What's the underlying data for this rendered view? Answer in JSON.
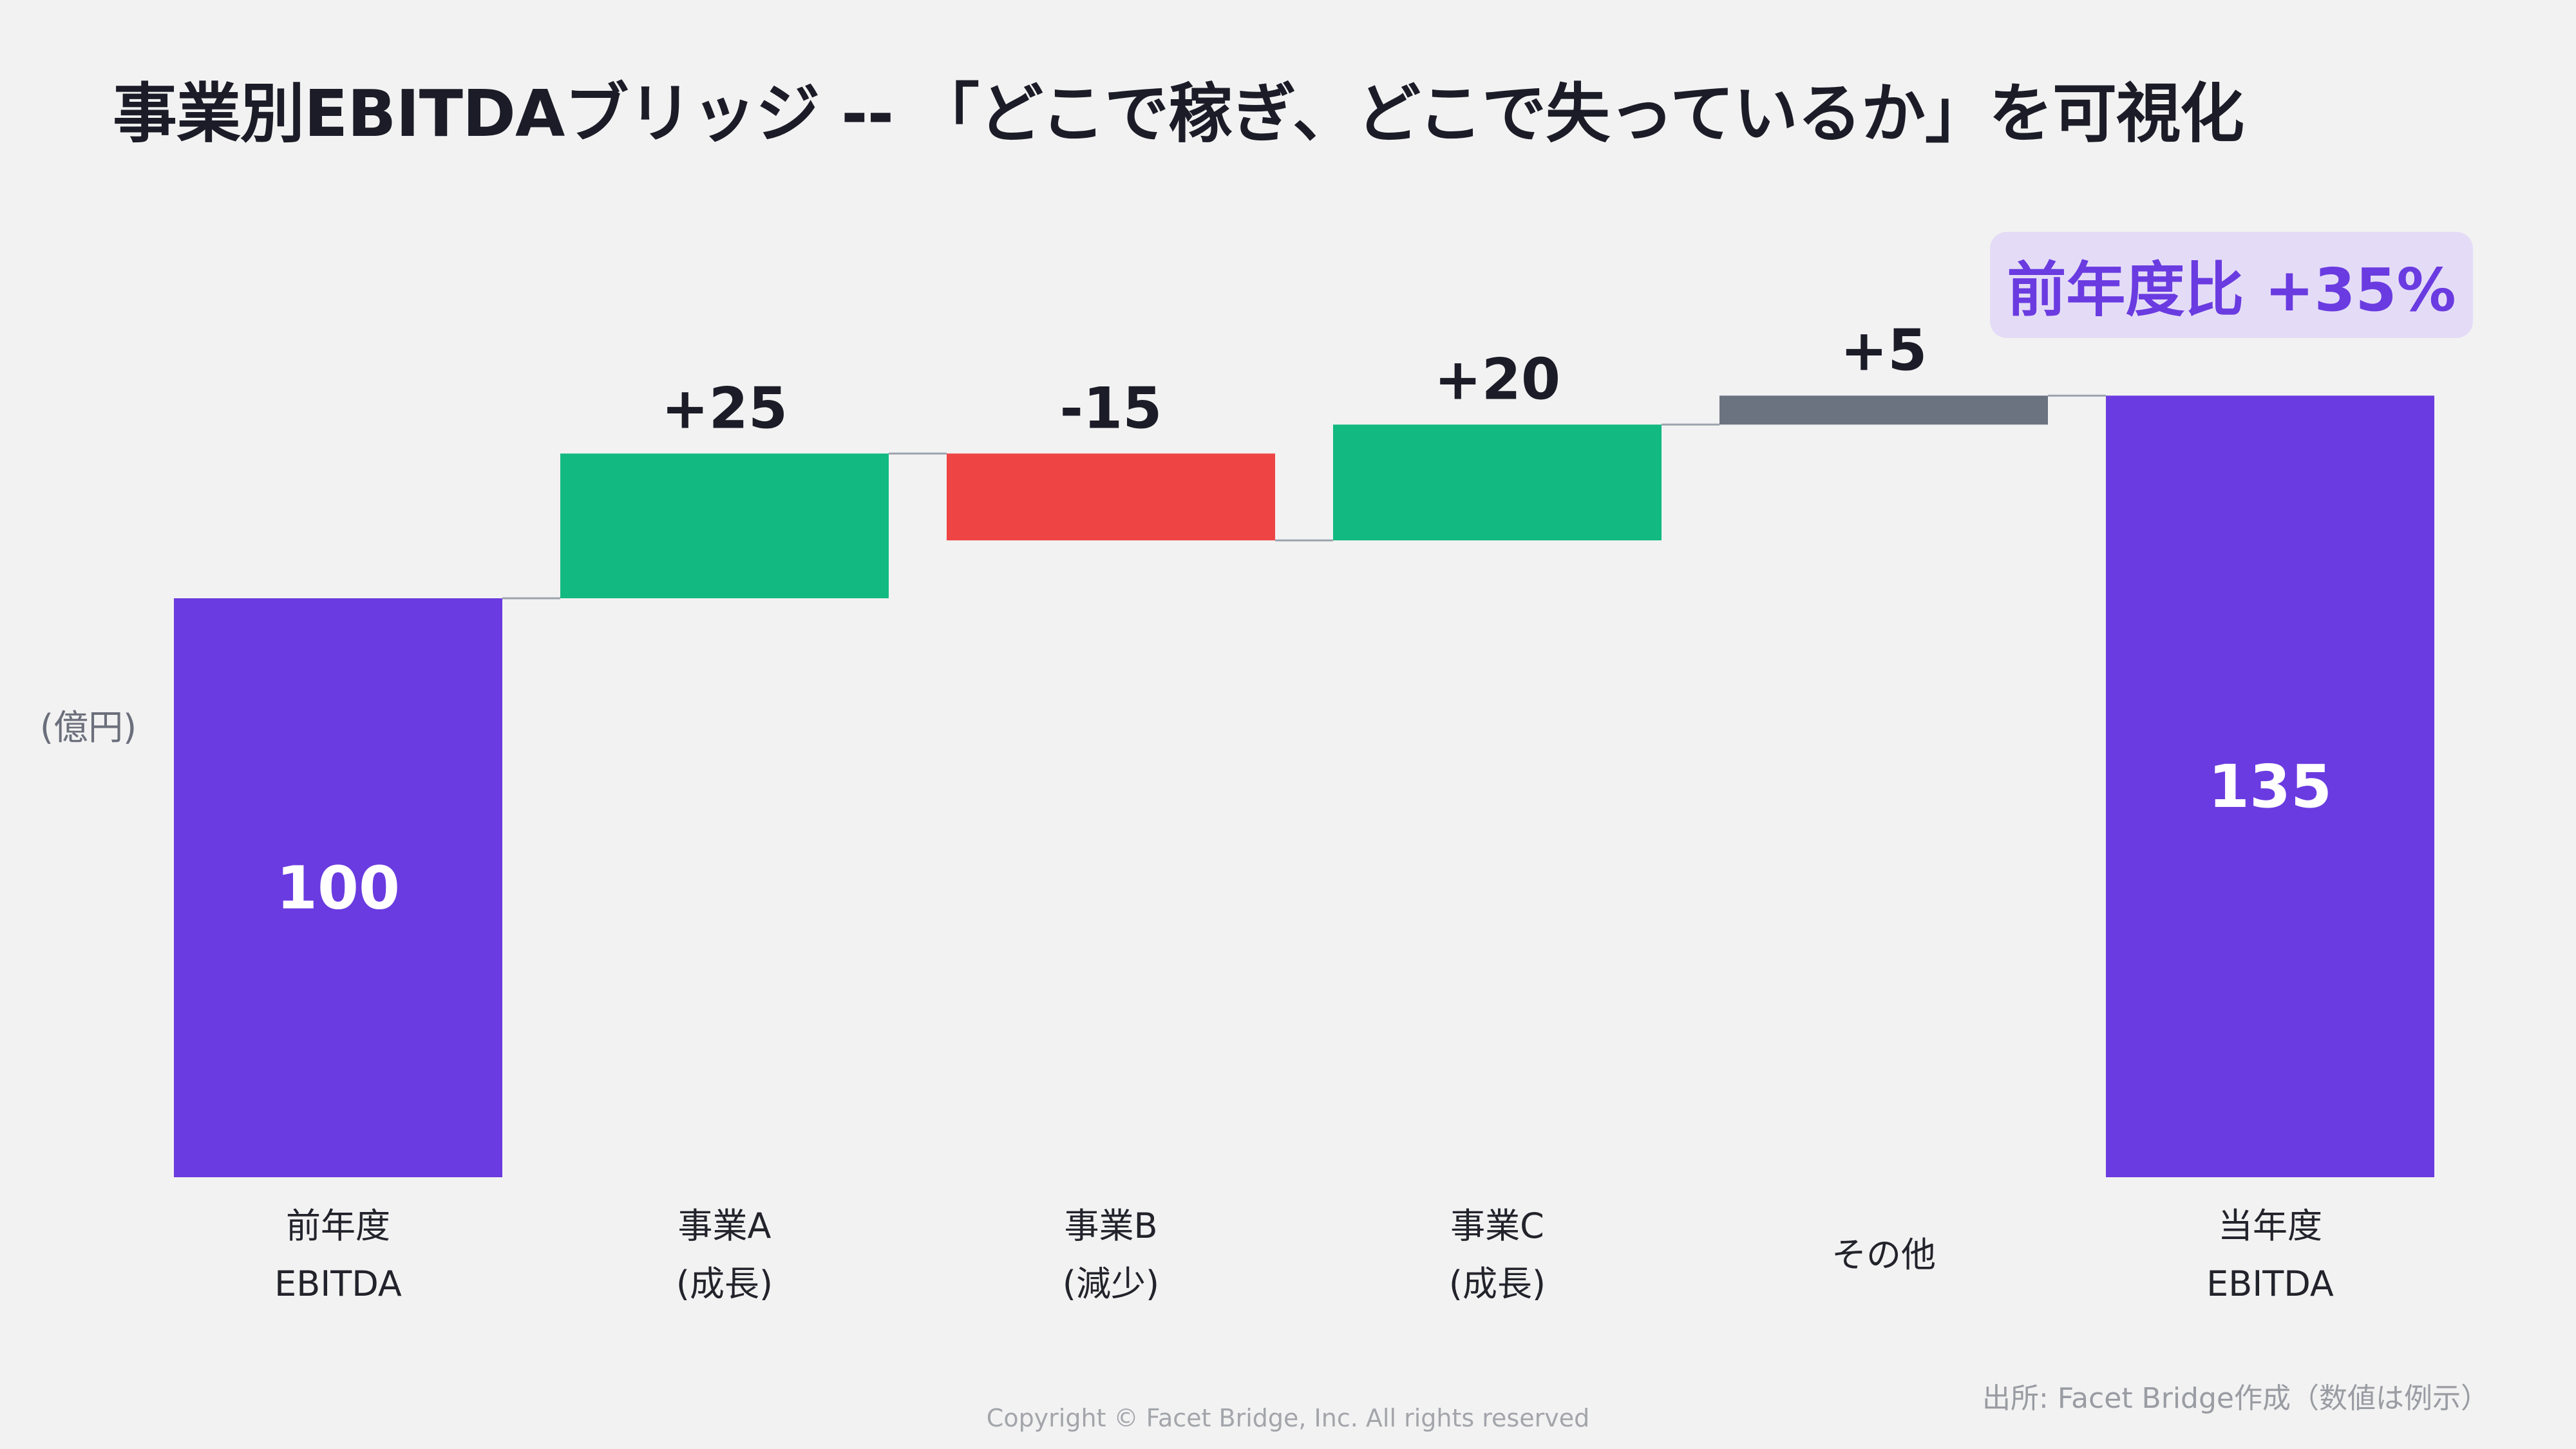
{
  "title": "事業別EBITDAブリッジ -- 「どこで稼ぎ、どこで失っているか」を可視化",
  "badge": "前年度比 +35%",
  "unit_label": "(億円)",
  "source": "出所: Facet Bridge作成（数値は例示）",
  "copyright": "Copyright © Facet Bridge, Inc. All rights reserved",
  "colors": {
    "total": "#6a3be0",
    "increase": "#12b981",
    "decrease": "#ef4444",
    "other": "#6b7280",
    "connector": "#9ca3af",
    "value_text_dark": "#1c1c28",
    "value_text_light": "#ffffff"
  },
  "chart_data": {
    "type": "bar",
    "subtype": "waterfall",
    "ylabel": "(億円)",
    "ylim": [
      0,
      135
    ],
    "grid": false,
    "steps": [
      {
        "label_lines": [
          "前年度",
          "EBITDA"
        ],
        "kind": "total",
        "value": 100,
        "display": "100"
      },
      {
        "label_lines": [
          "事業A",
          "(成長)"
        ],
        "kind": "increase",
        "value": 25,
        "display": "+25"
      },
      {
        "label_lines": [
          "事業B",
          "(減少)"
        ],
        "kind": "decrease",
        "value": -15,
        "display": "-15"
      },
      {
        "label_lines": [
          "事業C",
          "(成長)"
        ],
        "kind": "increase",
        "value": 20,
        "display": "+20"
      },
      {
        "label_lines": [
          "その他"
        ],
        "kind": "other",
        "value": 5,
        "display": "+5"
      },
      {
        "label_lines": [
          "当年度",
          "EBITDA"
        ],
        "kind": "total",
        "value": 135,
        "display": "135"
      }
    ]
  }
}
